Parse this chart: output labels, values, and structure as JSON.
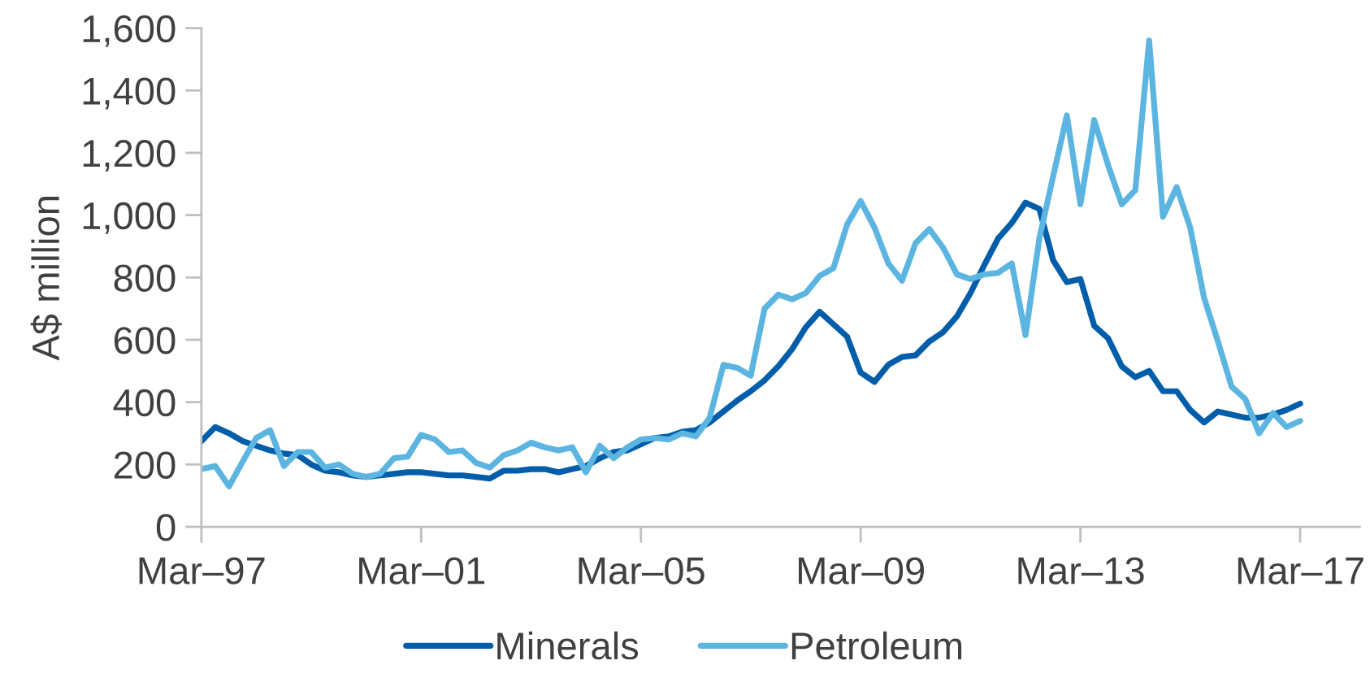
{
  "chart_data": {
    "type": "line",
    "ylabel": "A$ million",
    "x": [
      "1997-03",
      "1997-06",
      "1997-09",
      "1997-12",
      "1998-03",
      "1998-06",
      "1998-09",
      "1998-12",
      "1999-03",
      "1999-06",
      "1999-09",
      "1999-12",
      "2000-03",
      "2000-06",
      "2000-09",
      "2000-12",
      "2001-03",
      "2001-06",
      "2001-09",
      "2001-12",
      "2002-03",
      "2002-06",
      "2002-09",
      "2002-12",
      "2003-03",
      "2003-06",
      "2003-09",
      "2003-12",
      "2004-03",
      "2004-06",
      "2004-09",
      "2004-12",
      "2005-03",
      "2005-06",
      "2005-09",
      "2005-12",
      "2006-03",
      "2006-06",
      "2006-09",
      "2006-12",
      "2007-03",
      "2007-06",
      "2007-09",
      "2007-12",
      "2008-03",
      "2008-06",
      "2008-09",
      "2008-12",
      "2009-03",
      "2009-06",
      "2009-09",
      "2009-12",
      "2010-03",
      "2010-06",
      "2010-09",
      "2010-12",
      "2011-03",
      "2011-06",
      "2011-09",
      "2011-12",
      "2012-03",
      "2012-06",
      "2012-09",
      "2012-12",
      "2013-03",
      "2013-06",
      "2013-09",
      "2013-12",
      "2014-03",
      "2014-06",
      "2014-09",
      "2014-12",
      "2015-03",
      "2015-06",
      "2015-09",
      "2015-12",
      "2016-03",
      "2016-06",
      "2016-09",
      "2016-12",
      "2017-03"
    ],
    "series": [
      {
        "name": "Minerals",
        "color": "#005daa",
        "values": [
          275,
          320,
          300,
          275,
          260,
          245,
          235,
          230,
          200,
          180,
          175,
          165,
          160,
          165,
          170,
          175,
          175,
          170,
          165,
          165,
          160,
          155,
          180,
          180,
          185,
          185,
          175,
          185,
          195,
          220,
          240,
          245,
          265,
          285,
          290,
          305,
          310,
          335,
          370,
          405,
          435,
          470,
          515,
          570,
          640,
          690,
          650,
          610,
          495,
          465,
          520,
          545,
          550,
          595,
          625,
          675,
          750,
          840,
          925,
          975,
          1040,
          1020,
          855,
          785,
          795,
          645,
          605,
          515,
          480,
          500,
          435,
          435,
          375,
          335,
          370,
          360,
          350,
          350,
          360,
          375,
          395
        ]
      },
      {
        "name": "Petroleum",
        "color": "#5bb5e0",
        "values": [
          185,
          195,
          130,
          210,
          285,
          310,
          195,
          240,
          240,
          190,
          200,
          170,
          160,
          170,
          220,
          225,
          295,
          280,
          240,
          245,
          205,
          190,
          230,
          245,
          270,
          255,
          245,
          255,
          175,
          260,
          220,
          255,
          280,
          285,
          280,
          300,
          290,
          350,
          520,
          510,
          485,
          700,
          745,
          730,
          750,
          805,
          830,
          970,
          1045,
          960,
          845,
          790,
          910,
          955,
          895,
          810,
          795,
          810,
          815,
          845,
          615,
          925,
          1125,
          1320,
          1035,
          1305,
          1160,
          1035,
          1080,
          1560,
          995,
          1090,
          960,
          735,
          595,
          450,
          410,
          300,
          365,
          320,
          340
        ]
      }
    ],
    "xlim": [
      "1997-03",
      "2018-04"
    ],
    "xticks": [
      {
        "value": "1997-03",
        "label": "Mar–97"
      },
      {
        "value": "2001-03",
        "label": "Mar–01"
      },
      {
        "value": "2005-03",
        "label": "Mar–05"
      },
      {
        "value": "2009-03",
        "label": "Mar–09"
      },
      {
        "value": "2013-03",
        "label": "Mar–13"
      },
      {
        "value": "2017-03",
        "label": "Mar–17"
      }
    ],
    "ylim": [
      0,
      1600
    ],
    "yticks": [
      0,
      200,
      400,
      600,
      800,
      {
        "value": 1000,
        "label": "1,000"
      },
      {
        "value": 1200,
        "label": "1,200"
      },
      {
        "value": 1400,
        "label": "1,400"
      },
      {
        "value": 1600,
        "label": "1,600"
      }
    ],
    "legend": "bottom"
  }
}
